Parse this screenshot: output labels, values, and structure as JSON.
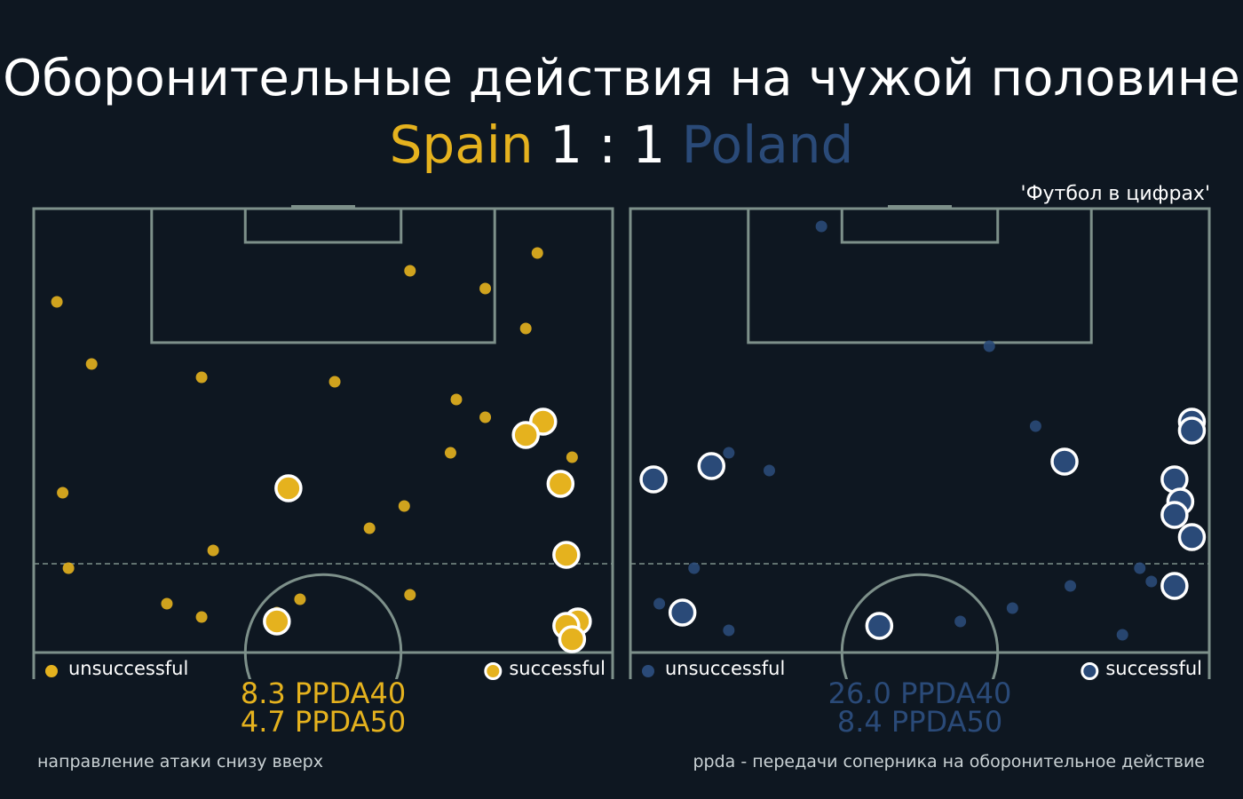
{
  "title": "Оборонительные действия на чужой половине",
  "score": {
    "home_team": "Spain",
    "score_text": "1 : 1",
    "away_team": "Poland"
  },
  "source": "'Футбол в цифрах'",
  "footer": {
    "left": "направление атаки снизу вверх",
    "right": "ppda - передачи соперника на оборонительное действие"
  },
  "colors": {
    "background": "#0e1721",
    "pitch_lines": "#7d908a",
    "home": "#e5b21e",
    "away": "#2a4a78",
    "text": "#ffffff"
  },
  "chart_data": [
    {
      "type": "scatter",
      "team": "Spain",
      "color": "#e5b21e",
      "legend": {
        "unsuccessful": "unsuccessful",
        "successful": "successful"
      },
      "ppda40": "8.3 PPDA40",
      "ppda50": "4.7 PPDA50",
      "unsuccessful": [
        [
          4,
          79
        ],
        [
          10,
          65
        ],
        [
          29,
          62
        ],
        [
          52,
          61
        ],
        [
          65,
          86
        ],
        [
          78,
          82
        ],
        [
          87,
          90
        ],
        [
          85,
          73
        ],
        [
          73,
          57
        ],
        [
          78,
          53
        ],
        [
          72,
          45
        ],
        [
          64,
          33
        ],
        [
          58,
          28
        ],
        [
          5,
          36
        ],
        [
          6,
          19
        ],
        [
          31,
          23
        ],
        [
          23,
          11
        ],
        [
          29,
          8
        ],
        [
          46,
          12
        ],
        [
          65,
          13
        ],
        [
          42,
          9
        ],
        [
          93,
          44
        ]
      ],
      "successful": [
        [
          44,
          37
        ],
        [
          88,
          52
        ],
        [
          85,
          49
        ],
        [
          91,
          38
        ],
        [
          92,
          22
        ],
        [
          94,
          7
        ],
        [
          92,
          6
        ],
        [
          93,
          3
        ],
        [
          42,
          7
        ]
      ]
    },
    {
      "type": "scatter",
      "team": "Poland",
      "color": "#2a4a78",
      "legend": {
        "unsuccessful": "unsuccessful",
        "successful": "successful"
      },
      "ppda40": "26.0 PPDA40",
      "ppda50": "8.4 PPDA50",
      "unsuccessful": [
        [
          33,
          96
        ],
        [
          62,
          69
        ],
        [
          70,
          51
        ],
        [
          17,
          45
        ],
        [
          24,
          41
        ],
        [
          11,
          19
        ],
        [
          5,
          11
        ],
        [
          17,
          5
        ],
        [
          57,
          7
        ],
        [
          66,
          10
        ],
        [
          76,
          15
        ],
        [
          88,
          19
        ],
        [
          90,
          16
        ],
        [
          85,
          4
        ]
      ],
      "successful": [
        [
          4,
          39
        ],
        [
          14,
          42
        ],
        [
          75,
          43
        ],
        [
          97,
          52
        ],
        [
          97,
          50
        ],
        [
          94,
          39
        ],
        [
          95,
          34
        ],
        [
          94,
          31
        ],
        [
          97,
          26
        ],
        [
          94,
          15
        ],
        [
          9,
          9
        ],
        [
          43,
          6
        ]
      ]
    }
  ]
}
